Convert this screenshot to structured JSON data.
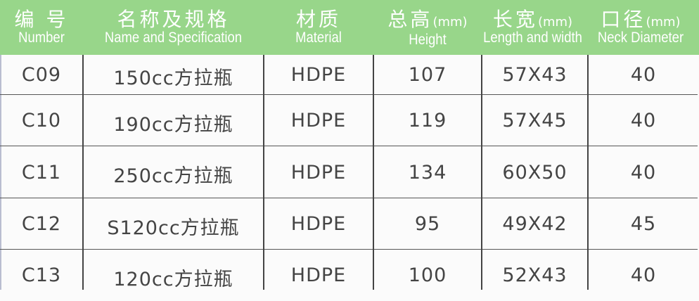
{
  "header": {
    "columns": [
      {
        "zh": "编 号",
        "unit": "",
        "en": "Number"
      },
      {
        "zh": "名称及规格",
        "unit": "",
        "en": "Name and Specification"
      },
      {
        "zh": "材质",
        "unit": "",
        "en": "Material"
      },
      {
        "zh": "总高",
        "unit": "(mm)",
        "en": "Height"
      },
      {
        "zh": "长宽",
        "unit": "(mm)",
        "en": "Length and width"
      },
      {
        "zh": "口径",
        "unit": "(mm)",
        "en": "Neck Diameter"
      }
    ],
    "color": "#98d68a"
  },
  "rows": [
    [
      "C09",
      "150cc方拉瓶",
      "HDPE",
      "107",
      "57X43",
      "40"
    ],
    [
      "C10",
      "190cc方拉瓶",
      "HDPE",
      "119",
      "57X45",
      "40"
    ],
    [
      "C11",
      "250cc方拉瓶",
      "HDPE",
      "134",
      "60X50",
      "40"
    ],
    [
      "C12",
      "S120cc方拉瓶",
      "HDPE",
      "95",
      "49X42",
      "45"
    ],
    [
      "C13",
      "120cc方拉瓶",
      "HDPE",
      "100",
      "52X43",
      "40"
    ]
  ]
}
